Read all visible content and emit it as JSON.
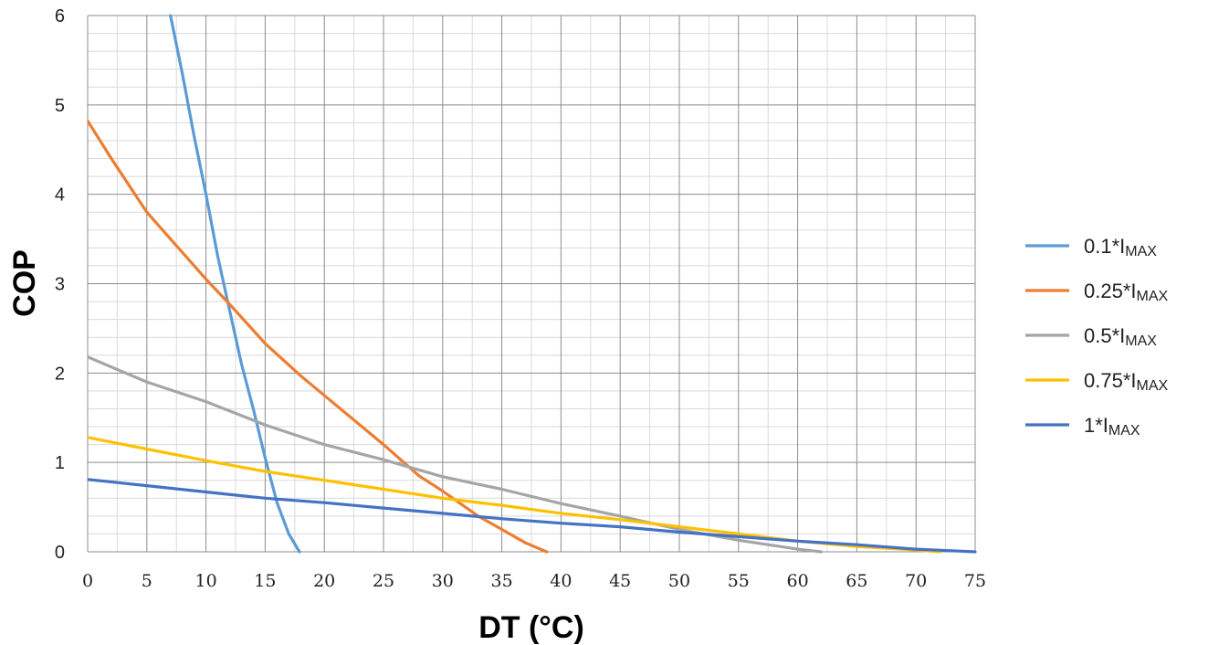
{
  "chart_data": {
    "type": "line",
    "xlabel": "DT (°C)",
    "ylabel": "COP",
    "xlim": [
      0,
      75
    ],
    "ylim": [
      0,
      6
    ],
    "x_ticks": [
      0,
      5,
      10,
      15,
      20,
      25,
      30,
      35,
      40,
      45,
      50,
      55,
      60,
      65,
      70,
      75
    ],
    "y_ticks": [
      0,
      1,
      2,
      3,
      4,
      5,
      6
    ],
    "grid": true,
    "legend_position": "right",
    "series": [
      {
        "name": "0.1*IMAX",
        "legend": {
          "prefix": "0.1*I",
          "sub": "MAX"
        },
        "color": "#5b9bd5",
        "points": [
          [
            7,
            6.0
          ],
          [
            8,
            5.35
          ],
          [
            9,
            4.65
          ],
          [
            10,
            4.0
          ],
          [
            11,
            3.3
          ],
          [
            12,
            2.7
          ],
          [
            13,
            2.1
          ],
          [
            14,
            1.6
          ],
          [
            15,
            1.05
          ],
          [
            16,
            0.55
          ],
          [
            17,
            0.2
          ],
          [
            17.9,
            0.0
          ]
        ]
      },
      {
        "name": "0.25*IMAX",
        "legend": {
          "prefix": "0.25*I",
          "sub": "MAX"
        },
        "color": "#ed7d31",
        "points": [
          [
            0,
            4.82
          ],
          [
            2,
            4.4
          ],
          [
            5,
            3.8
          ],
          [
            7,
            3.5
          ],
          [
            10,
            3.05
          ],
          [
            12,
            2.77
          ],
          [
            15,
            2.33
          ],
          [
            18,
            1.97
          ],
          [
            20,
            1.75
          ],
          [
            25,
            1.2
          ],
          [
            28,
            0.85
          ],
          [
            30,
            0.68
          ],
          [
            33,
            0.4
          ],
          [
            35,
            0.25
          ],
          [
            37,
            0.1
          ],
          [
            38.8,
            0.0
          ]
        ]
      },
      {
        "name": "0.5*IMAX",
        "legend": {
          "prefix": "0.5*I",
          "sub": "MAX"
        },
        "color": "#a5a5a5",
        "points": [
          [
            0,
            2.18
          ],
          [
            5,
            1.9
          ],
          [
            10,
            1.68
          ],
          [
            15,
            1.42
          ],
          [
            20,
            1.2
          ],
          [
            25,
            1.03
          ],
          [
            30,
            0.84
          ],
          [
            35,
            0.7
          ],
          [
            40,
            0.54
          ],
          [
            45,
            0.4
          ],
          [
            50,
            0.25
          ],
          [
            55,
            0.13
          ],
          [
            60,
            0.03
          ],
          [
            62,
            0.0
          ]
        ]
      },
      {
        "name": "0.75*IMAX",
        "legend": {
          "prefix": "0.75*I",
          "sub": "MAX"
        },
        "color": "#ffc000",
        "points": [
          [
            0,
            1.28
          ],
          [
            5,
            1.15
          ],
          [
            10,
            1.02
          ],
          [
            15,
            0.9
          ],
          [
            20,
            0.8
          ],
          [
            25,
            0.7
          ],
          [
            30,
            0.6
          ],
          [
            35,
            0.52
          ],
          [
            40,
            0.43
          ],
          [
            45,
            0.36
          ],
          [
            50,
            0.28
          ],
          [
            55,
            0.2
          ],
          [
            60,
            0.12
          ],
          [
            65,
            0.06
          ],
          [
            70,
            0.02
          ],
          [
            72,
            0.0
          ]
        ]
      },
      {
        "name": "1*IMAX",
        "legend": {
          "prefix": "1*I",
          "sub": "MAX"
        },
        "color": "#4472c4",
        "points": [
          [
            0,
            0.81
          ],
          [
            5,
            0.74
          ],
          [
            10,
            0.67
          ],
          [
            15,
            0.6
          ],
          [
            20,
            0.55
          ],
          [
            25,
            0.49
          ],
          [
            30,
            0.43
          ],
          [
            35,
            0.37
          ],
          [
            40,
            0.32
          ],
          [
            45,
            0.28
          ],
          [
            50,
            0.22
          ],
          [
            55,
            0.17
          ],
          [
            60,
            0.12
          ],
          [
            65,
            0.08
          ],
          [
            70,
            0.03
          ],
          [
            75,
            0.0
          ]
        ]
      }
    ]
  }
}
